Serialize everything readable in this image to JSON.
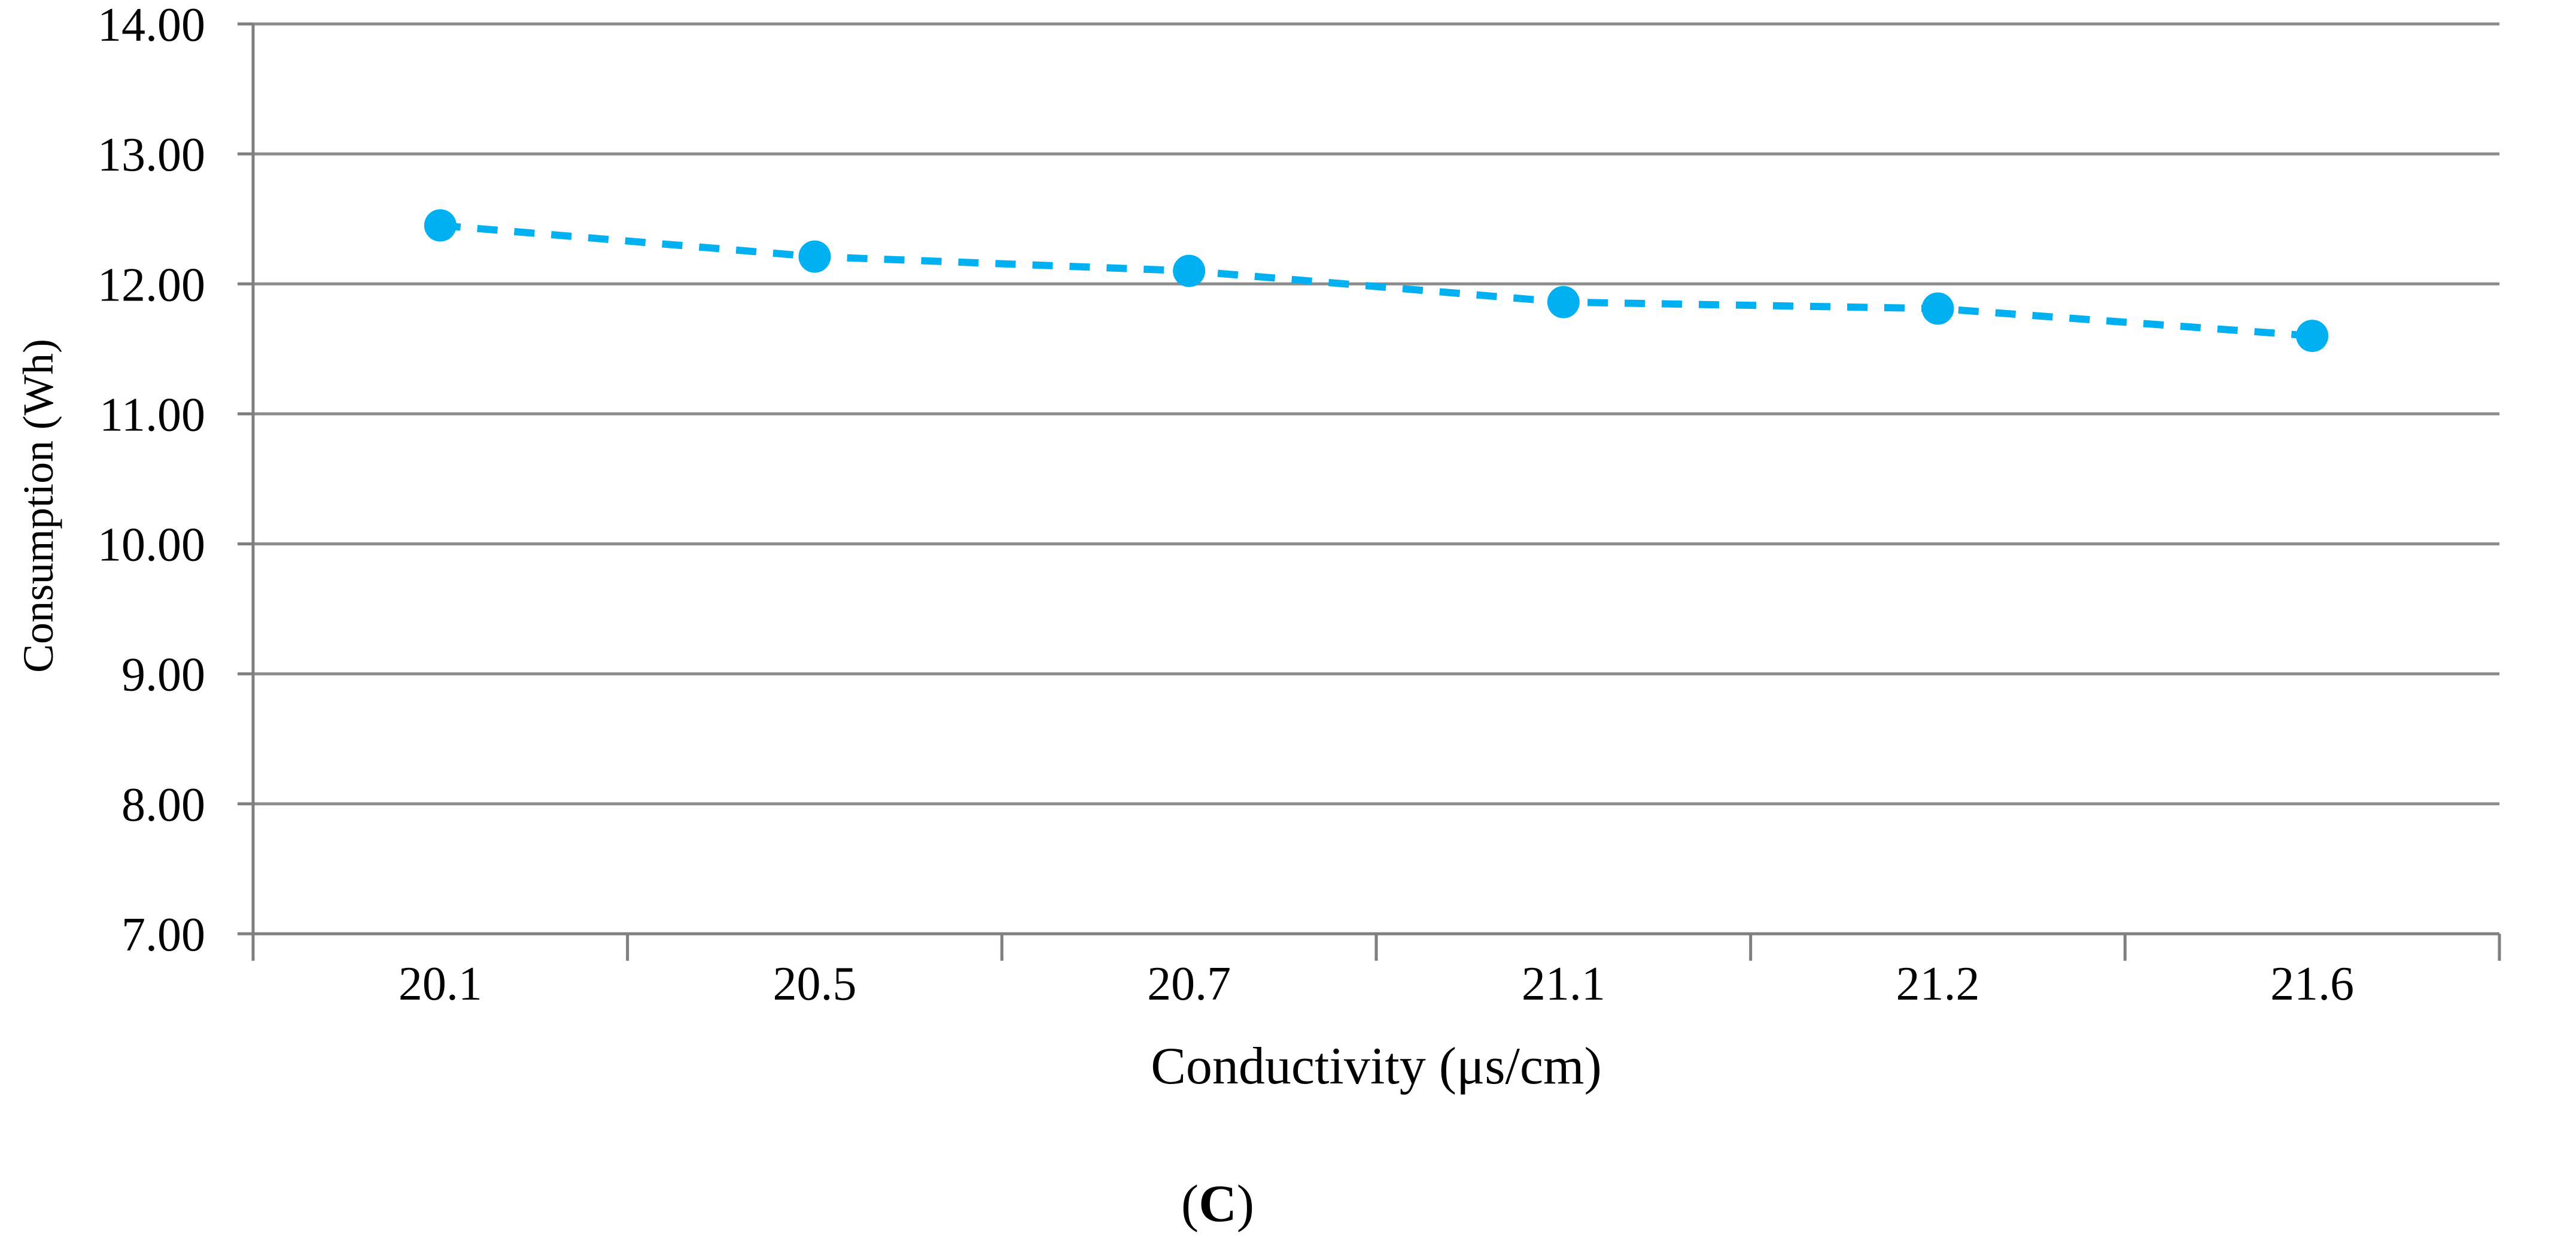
{
  "chart_data": {
    "type": "line",
    "title": "",
    "xlabel": "Conductivity (μs/cm)",
    "ylabel": "Consumption (Wh)",
    "categories": [
      "20.1",
      "20.5",
      "20.7",
      "21.1",
      "21.2",
      "21.6"
    ],
    "series": [
      {
        "name": "Consumption (Wh)",
        "values": [
          12.45,
          12.21,
          12.1,
          11.86,
          11.81,
          11.6
        ],
        "color": "#00B0F0",
        "line_style": "dashed",
        "marker": "circle"
      }
    ],
    "ylim": [
      7,
      14
    ],
    "ytick_labels": [
      "14.00",
      "13.00",
      "12.00",
      "11.00",
      "10.00",
      "9.00",
      "8.00",
      "7.00"
    ],
    "grid": "horizontal",
    "legend": "none",
    "colors": {
      "gridline": "#8C8C8C",
      "axis": "#7F7F7F",
      "text": "#000000",
      "background": "#FFFFFF"
    }
  },
  "figure": {
    "caption_open": "(",
    "caption_letter": "C",
    "caption_close": ")"
  }
}
